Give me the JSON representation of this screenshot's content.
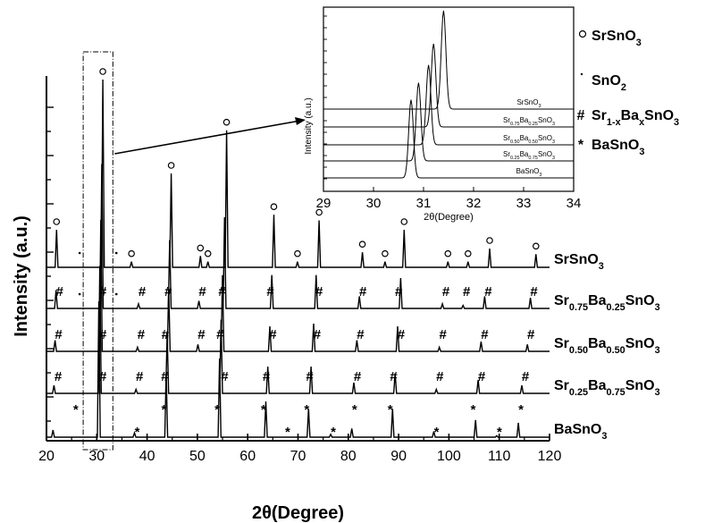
{
  "chart_data": [
    {
      "type": "line",
      "panel": "main",
      "xlabel": "2θ(Degree)",
      "ylabel": "Intensity (a.u.)",
      "xlim": [
        20,
        120
      ],
      "x_ticks": [
        20,
        30,
        40,
        50,
        60,
        70,
        80,
        90,
        100,
        110,
        120
      ],
      "series": [
        {
          "name": "SrSnO3",
          "label_main": "SrSnO",
          "label_sub": "3",
          "peaks": [
            {
              "x": 22.0,
              "h": 0.2
            },
            {
              "x": 31.2,
              "h": 1.0
            },
            {
              "x": 36.9,
              "h": 0.03
            },
            {
              "x": 44.8,
              "h": 0.5
            },
            {
              "x": 50.6,
              "h": 0.06
            },
            {
              "x": 52.1,
              "h": 0.03
            },
            {
              "x": 55.8,
              "h": 0.73
            },
            {
              "x": 65.2,
              "h": 0.28
            },
            {
              "x": 69.9,
              "h": 0.03
            },
            {
              "x": 74.2,
              "h": 0.25
            },
            {
              "x": 82.8,
              "h": 0.08
            },
            {
              "x": 87.3,
              "h": 0.03
            },
            {
              "x": 91.1,
              "h": 0.2
            },
            {
              "x": 99.8,
              "h": 0.03
            },
            {
              "x": 103.8,
              "h": 0.03
            },
            {
              "x": 108.1,
              "h": 0.1
            },
            {
              "x": 117.3,
              "h": 0.07
            }
          ],
          "markers": [
            {
              "x": 22.0,
              "s": "o"
            },
            {
              "x": 31.2,
              "s": "o"
            },
            {
              "x": 36.9,
              "s": "o"
            },
            {
              "x": 44.8,
              "s": "o"
            },
            {
              "x": 50.6,
              "s": "o"
            },
            {
              "x": 52.1,
              "s": "o"
            },
            {
              "x": 55.8,
              "s": "o"
            },
            {
              "x": 65.2,
              "s": "o"
            },
            {
              "x": 69.9,
              "s": "o"
            },
            {
              "x": 74.2,
              "s": "o"
            },
            {
              "x": 82.8,
              "s": "o"
            },
            {
              "x": 87.3,
              "s": "o"
            },
            {
              "x": 91.1,
              "s": "o"
            },
            {
              "x": 99.8,
              "s": "o"
            },
            {
              "x": 103.8,
              "s": "o"
            },
            {
              "x": 108.1,
              "s": "o"
            },
            {
              "x": 117.3,
              "s": "o"
            },
            {
              "x": 26.6,
              "s": "·"
            },
            {
              "x": 33.9,
              "s": "·"
            }
          ]
        },
        {
          "name": "Sr0.75Ba0.25SnO3",
          "parts": [
            [
              "Sr",
              ""
            ],
            [
              "0.75",
              "sub"
            ],
            [
              "Ba",
              ""
            ],
            [
              "0.25",
              "sub"
            ],
            [
              "SnO",
              ""
            ],
            [
              "3",
              "sub"
            ]
          ],
          "peaks": [
            {
              "x": 21.9,
              "h": 0.12
            },
            {
              "x": 31.0,
              "h": 0.95
            },
            {
              "x": 38.3,
              "h": 0.03
            },
            {
              "x": 44.5,
              "h": 0.45
            },
            {
              "x": 50.3,
              "h": 0.05
            },
            {
              "x": 55.4,
              "h": 0.6
            },
            {
              "x": 64.8,
              "h": 0.22
            },
            {
              "x": 73.6,
              "h": 0.22
            },
            {
              "x": 82.2,
              "h": 0.08
            },
            {
              "x": 90.4,
              "h": 0.2
            },
            {
              "x": 98.7,
              "h": 0.03
            },
            {
              "x": 102.8,
              "h": 0.02
            },
            {
              "x": 107.1,
              "h": 0.08
            },
            {
              "x": 116.2,
              "h": 0.07
            }
          ],
          "markers": [
            {
              "x": 21.9,
              "s": "#"
            },
            {
              "x": 30.5,
              "s": "#"
            },
            {
              "x": 38.3,
              "s": "#"
            },
            {
              "x": 43.5,
              "s": "#"
            },
            {
              "x": 50.3,
              "s": "#"
            },
            {
              "x": 54.2,
              "s": "#"
            },
            {
              "x": 63.8,
              "s": "#"
            },
            {
              "x": 73.5,
              "s": "#"
            },
            {
              "x": 82.2,
              "s": "#"
            },
            {
              "x": 89.3,
              "s": "#"
            },
            {
              "x": 98.7,
              "s": "#"
            },
            {
              "x": 102.8,
              "s": "#"
            },
            {
              "x": 107.1,
              "s": "#"
            },
            {
              "x": 116.2,
              "s": "#"
            },
            {
              "x": 26.6,
              "s": "·"
            },
            {
              "x": 33.9,
              "s": "·"
            }
          ]
        },
        {
          "name": "Sr0.50Ba0.50SnO3",
          "parts": [
            [
              "Sr",
              ""
            ],
            [
              "0.50",
              "sub"
            ],
            [
              "Ba",
              ""
            ],
            [
              "0.50",
              "sub"
            ],
            [
              "SnO",
              ""
            ],
            [
              "3",
              "sub"
            ]
          ],
          "peaks": [
            {
              "x": 21.7,
              "h": 0.08
            },
            {
              "x": 30.8,
              "h": 0.95
            },
            {
              "x": 38.1,
              "h": 0.03
            },
            {
              "x": 44.3,
              "h": 0.45
            },
            {
              "x": 50.1,
              "h": 0.05
            },
            {
              "x": 55.0,
              "h": 0.55
            },
            {
              "x": 64.4,
              "h": 0.18
            },
            {
              "x": 73.1,
              "h": 0.2
            },
            {
              "x": 81.7,
              "h": 0.08
            },
            {
              "x": 89.8,
              "h": 0.18
            },
            {
              "x": 98.1,
              "h": 0.03
            },
            {
              "x": 106.4,
              "h": 0.07
            },
            {
              "x": 115.6,
              "h": 0.05
            }
          ],
          "markers": [
            {
              "x": 21.7,
              "s": "#"
            },
            {
              "x": 30.5,
              "s": "#"
            },
            {
              "x": 38.1,
              "s": "#"
            },
            {
              "x": 42.9,
              "s": "#"
            },
            {
              "x": 50.1,
              "s": "#"
            },
            {
              "x": 53.8,
              "s": "#"
            },
            {
              "x": 64.3,
              "s": "#"
            },
            {
              "x": 73.1,
              "s": "#"
            },
            {
              "x": 81.7,
              "s": "#"
            },
            {
              "x": 89.8,
              "s": "#"
            },
            {
              "x": 98.1,
              "s": "#"
            },
            {
              "x": 106.4,
              "s": "#"
            },
            {
              "x": 115.6,
              "s": "#"
            }
          ]
        },
        {
          "name": "Sr0.25Ba0.75SnO3",
          "parts": [
            [
              "Sr",
              ""
            ],
            [
              "0.25",
              "sub"
            ],
            [
              "Ba",
              ""
            ],
            [
              "0.75",
              "sub"
            ],
            [
              "SnO",
              ""
            ],
            [
              "3",
              "sub"
            ]
          ],
          "peaks": [
            {
              "x": 21.5,
              "h": 0.06
            },
            {
              "x": 30.6,
              "h": 0.95
            },
            {
              "x": 37.8,
              "h": 0.03
            },
            {
              "x": 44.0,
              "h": 0.45
            },
            {
              "x": 54.7,
              "h": 0.55
            },
            {
              "x": 64.0,
              "h": 0.2
            },
            {
              "x": 72.6,
              "h": 0.2
            },
            {
              "x": 81.1,
              "h": 0.08
            },
            {
              "x": 89.3,
              "h": 0.15
            },
            {
              "x": 97.5,
              "h": 0.03
            },
            {
              "x": 105.8,
              "h": 0.1
            },
            {
              "x": 114.5,
              "h": 0.06
            }
          ],
          "markers": [
            {
              "x": 21.6,
              "s": "#"
            },
            {
              "x": 30.5,
              "s": "#"
            },
            {
              "x": 37.8,
              "s": "#"
            },
            {
              "x": 42.8,
              "s": "#"
            },
            {
              "x": 54.7,
              "s": "#"
            },
            {
              "x": 63.0,
              "s": "#"
            },
            {
              "x": 71.6,
              "s": "#"
            },
            {
              "x": 81.1,
              "s": "#"
            },
            {
              "x": 88.3,
              "s": "#"
            },
            {
              "x": 97.5,
              "s": "#"
            },
            {
              "x": 105.8,
              "s": "#"
            },
            {
              "x": 114.5,
              "s": "#"
            }
          ]
        },
        {
          "name": "BaSnO3",
          "label_main": "BaSnO",
          "label_sub": "3",
          "peaks": [
            {
              "x": 21.3,
              "h": 0.05
            },
            {
              "x": 30.4,
              "h": 0.95
            },
            {
              "x": 37.5,
              "h": 0.03
            },
            {
              "x": 43.8,
              "h": 0.45
            },
            {
              "x": 54.4,
              "h": 0.55
            },
            {
              "x": 63.6,
              "h": 0.25
            },
            {
              "x": 72.1,
              "h": 0.2
            },
            {
              "x": 76.5,
              "h": 0.02
            },
            {
              "x": 80.7,
              "h": 0.06
            },
            {
              "x": 88.8,
              "h": 0.2
            },
            {
              "x": 97.0,
              "h": 0.04
            },
            {
              "x": 105.3,
              "h": 0.12
            },
            {
              "x": 109.5,
              "h": 0.01
            },
            {
              "x": 113.8,
              "h": 0.1
            }
          ],
          "markers": [
            {
              "x": 25.3,
              "s": "*",
              "row": 0
            },
            {
              "x": 37.5,
              "s": "*",
              "row": 1
            },
            {
              "x": 42.8,
              "s": "*",
              "row": 0
            },
            {
              "x": 53.4,
              "s": "*",
              "row": 0
            },
            {
              "x": 62.6,
              "s": "*",
              "row": 0
            },
            {
              "x": 67.4,
              "s": "*",
              "row": 1
            },
            {
              "x": 71.2,
              "s": "*",
              "row": 0
            },
            {
              "x": 76.5,
              "s": "*",
              "row": 1
            },
            {
              "x": 80.7,
              "s": "*",
              "row": 0
            },
            {
              "x": 87.8,
              "s": "*",
              "row": 0
            },
            {
              "x": 97.0,
              "s": "*",
              "row": 1
            },
            {
              "x": 104.3,
              "s": "*",
              "row": 0
            },
            {
              "x": 109.5,
              "s": "*",
              "row": 1
            },
            {
              "x": 113.8,
              "s": "*",
              "row": 0
            }
          ]
        }
      ]
    },
    {
      "type": "line",
      "panel": "inset",
      "xlabel": "2θ(Degree)",
      "ylabel": "Intensity (a.u.)",
      "xlim": [
        29,
        34
      ],
      "x_ticks": [
        29,
        30,
        31,
        32,
        33,
        34
      ],
      "series": [
        {
          "name": "SrSnO3",
          "parts": [
            [
              "SrSnO",
              ""
            ],
            [
              "3",
              "sub"
            ]
          ],
          "peak_x": 31.4,
          "rel_height": 1.0
        },
        {
          "name": "Sr0.75Ba0.25SnO3",
          "parts": [
            [
              "Sr",
              ""
            ],
            [
              "0.75",
              "sub"
            ],
            [
              "Ba",
              ""
            ],
            [
              "0.25",
              "sub"
            ],
            [
              "SnO",
              ""
            ],
            [
              "3",
              "sub"
            ]
          ],
          "peak_x": 31.2,
          "rel_height": 0.95
        },
        {
          "name": "Sr0.50Ba0.50SnO3",
          "parts": [
            [
              "Sr",
              ""
            ],
            [
              "0.50",
              "sub"
            ],
            [
              "Ba",
              ""
            ],
            [
              "0.50",
              "sub"
            ],
            [
              "SnO",
              ""
            ],
            [
              "3",
              "sub"
            ]
          ],
          "peak_x": 31.1,
          "rel_height": 0.95
        },
        {
          "name": "Sr0.25Ba0.75SnO3",
          "parts": [
            [
              "Sr",
              ""
            ],
            [
              "0.25",
              "sub"
            ],
            [
              "Ba",
              ""
            ],
            [
              "0.75",
              "sub"
            ],
            [
              "SnO",
              ""
            ],
            [
              "3",
              "sub"
            ]
          ],
          "peak_x": 30.9,
          "rel_height": 0.95
        },
        {
          "name": "BaSnO3",
          "parts": [
            [
              "BaSnO",
              ""
            ],
            [
              "3",
              "sub"
            ]
          ],
          "peak_x": 30.75,
          "rel_height": 0.95
        }
      ]
    }
  ],
  "legend": [
    {
      "symbol": "o",
      "parts": [
        [
          "SrSnO",
          ""
        ],
        [
          "3",
          "sub"
        ]
      ]
    },
    {
      "symbol": "·",
      "parts": [
        [
          "SnO",
          ""
        ],
        [
          "2",
          "sub"
        ]
      ]
    },
    {
      "symbol": "#",
      "parts": [
        [
          "Sr",
          ""
        ],
        [
          "1-x",
          "sub"
        ],
        [
          "Ba",
          ""
        ],
        [
          "x",
          "sub"
        ],
        [
          "SnO",
          ""
        ],
        [
          "3",
          "sub"
        ]
      ]
    },
    {
      "symbol": "*",
      "parts": [
        [
          "BaSnO",
          ""
        ],
        [
          "3",
          "sub"
        ]
      ]
    }
  ],
  "colors": {
    "line": "#000000",
    "background": "#ffffff"
  }
}
